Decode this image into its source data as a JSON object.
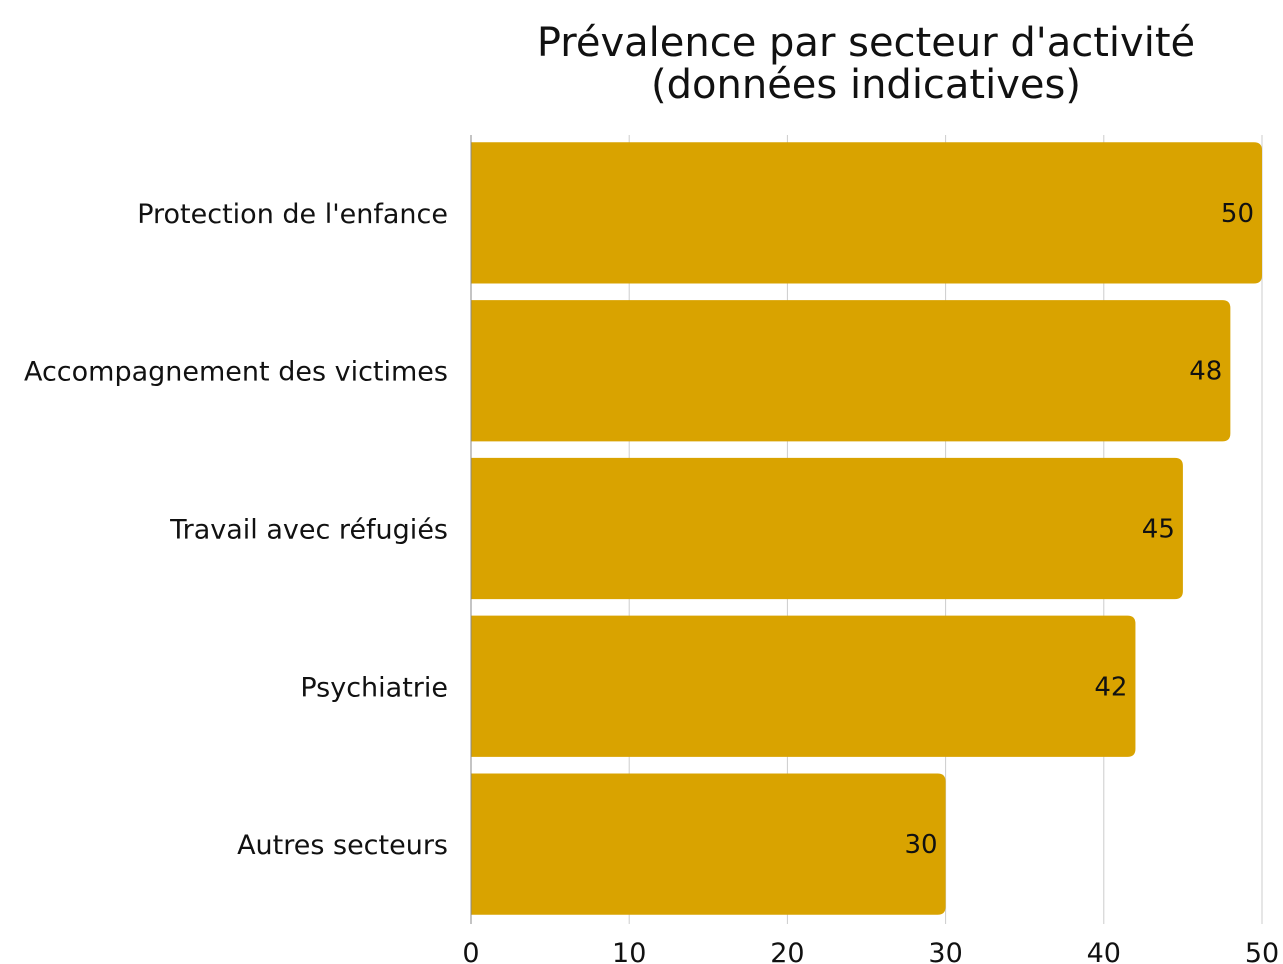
{
  "chart_data": {
    "type": "bar",
    "orientation": "horizontal",
    "title_lines": [
      "Prévalence par secteur d'activité",
      "(données indicatives)"
    ],
    "categories": [
      "Protection de l'enfance",
      "Accompagnement des victimes",
      "Travail avec réfugiés",
      "Psychiatrie",
      "Autres secteurs"
    ],
    "values": [
      50,
      48,
      45,
      42,
      30
    ],
    "xlim": [
      0,
      50
    ],
    "xticks": [
      0,
      10,
      20,
      30,
      40,
      50
    ],
    "xlabel": "",
    "ylabel": "",
    "grid": "vertical",
    "legend": "none",
    "bar_color": "#D9A300",
    "data_labels": "inside-end"
  }
}
